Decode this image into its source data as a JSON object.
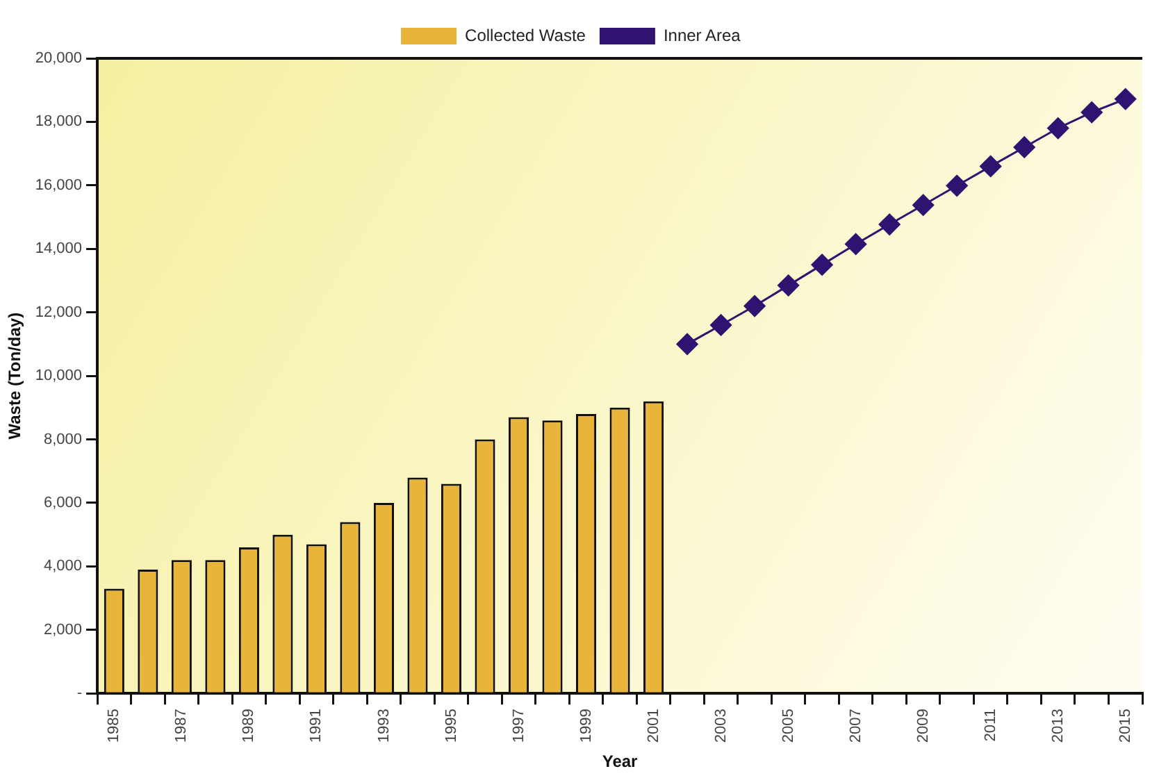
{
  "chart_data": {
    "type": "bar",
    "xlabel": "Year",
    "ylabel": "Waste (Ton/day)",
    "categories": [
      "1985",
      null,
      "1987",
      null,
      "1989",
      null,
      "1991",
      null,
      "1993",
      null,
      "1995",
      null,
      "1997",
      null,
      "1999",
      null,
      "2001",
      null,
      "2003",
      null,
      "2005",
      null,
      "2007",
      null,
      "2009",
      null,
      "2011",
      null,
      "2013",
      null,
      "2015"
    ],
    "series": [
      {
        "name": "Collected Waste",
        "color": "#e8b53a",
        "values": [
          3300,
          3900,
          4200,
          4200,
          4600,
          5000,
          4700,
          5400,
          6000,
          6800,
          6600,
          8000,
          8700,
          8600,
          8800,
          9000,
          9200,
          null,
          null,
          null,
          null,
          null,
          null,
          null,
          null,
          null,
          null,
          null,
          null,
          null,
          null
        ]
      },
      {
        "name": "Inner Area",
        "type": "line",
        "color": "#2e1470",
        "marker": "diamond",
        "line_style": "solid",
        "values": [
          null,
          null,
          null,
          null,
          null,
          null,
          null,
          null,
          null,
          null,
          null,
          null,
          null,
          null,
          null,
          null,
          null,
          11000,
          11600,
          12200,
          12850,
          13500,
          14150,
          14770,
          15380,
          15990,
          16600,
          17200,
          17800,
          18300,
          18720
        ]
      }
    ],
    "ylim": [
      0,
      20000
    ],
    "yticks": [
      {
        "value": 0,
        "label": "-"
      },
      {
        "value": 2000,
        "label": "2,000"
      },
      {
        "value": 4000,
        "label": "4,000"
      },
      {
        "value": 6000,
        "label": "6,000"
      },
      {
        "value": 8000,
        "label": "8,000"
      },
      {
        "value": 10000,
        "label": "10,000"
      },
      {
        "value": 12000,
        "label": "12,000"
      },
      {
        "value": 14000,
        "label": "14,000"
      },
      {
        "value": 16000,
        "label": "16,000"
      },
      {
        "value": 18000,
        "label": "18,000"
      },
      {
        "value": 20000,
        "label": "20,000"
      }
    ],
    "grid": false,
    "legend": "top"
  }
}
